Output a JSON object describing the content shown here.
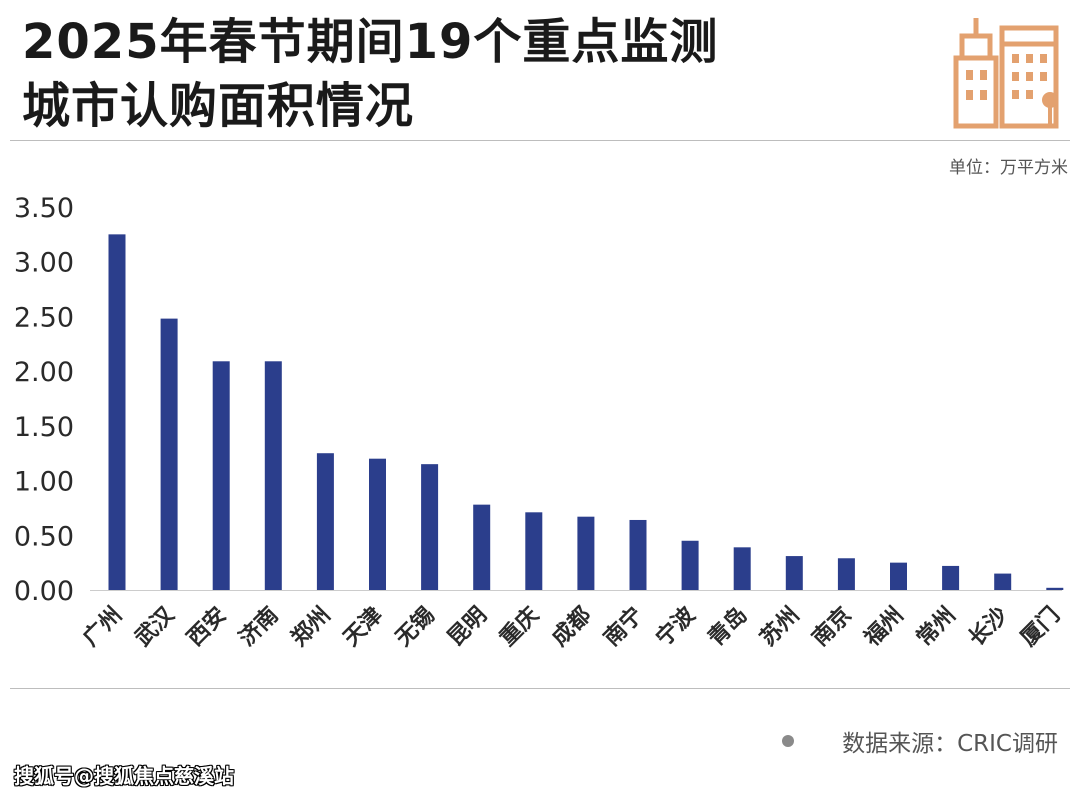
{
  "header": {
    "title_line1": "2025年春节期间19个重点监测",
    "title_line2": "城市认购面积情况"
  },
  "unit_label": "单位：万平方米",
  "source_label": "数据来源：CRIC调研",
  "watermark_text": "搜狐号@搜狐焦点慈溪站",
  "colors": {
    "bar": "#2b3e8c",
    "accent": "#e3a16f"
  },
  "logo_icon": "city-buildings-icon",
  "chart_data": {
    "type": "bar",
    "title": "2025年春节期间19个重点监测城市认购面积情况",
    "ylabel": "",
    "xlabel": "",
    "ylim": [
      0,
      3.5
    ],
    "yticks": [
      "0.00",
      "0.50",
      "1.00",
      "1.50",
      "2.00",
      "2.50",
      "3.00",
      "3.50"
    ],
    "grid": false,
    "categories": [
      "广州",
      "武汉",
      "西安",
      "济南",
      "郑州",
      "天津",
      "无锡",
      "昆明",
      "重庆",
      "成都",
      "南宁",
      "宁波",
      "青岛",
      "苏州",
      "南京",
      "福州",
      "常州",
      "长沙",
      "厦门"
    ],
    "values": [
      3.25,
      2.48,
      2.09,
      2.09,
      1.25,
      1.2,
      1.15,
      0.78,
      0.71,
      0.67,
      0.64,
      0.45,
      0.39,
      0.31,
      0.29,
      0.25,
      0.22,
      0.15,
      0.02
    ]
  }
}
